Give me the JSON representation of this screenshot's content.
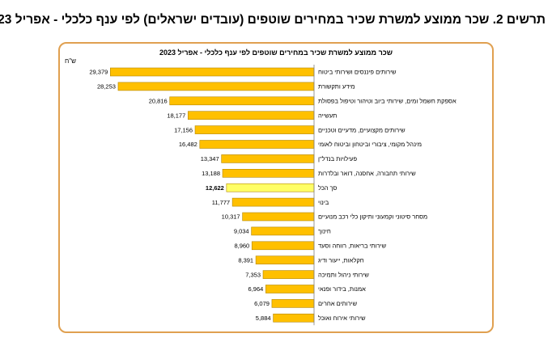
{
  "page": {
    "title": "תרשים 2.  שכר ממוצע למשרת שכיר במחירים שוטפים (עובדים ישראלים) לפי ענף כלכלי - אפריל 2023"
  },
  "chart_data": {
    "type": "bar",
    "orientation": "horizontal",
    "title": "שכר ממוצע למשרת שכיר במחירים שוטפים לפי ענף כלכלי - אפריל  2023",
    "unit": "ש\"ח",
    "xlim": [
      0,
      30000
    ],
    "grid": false,
    "legend": "none",
    "bar_color": "#FFC000",
    "highlight_color": "#FFFF66",
    "bar_edge_color": "#B38600",
    "highlight_category": "סך הכל",
    "categories": [
      "שירותים פיננסים ושירותי ביטוח",
      "מידע ותקשורת",
      "אספקת חשמל ומים, שירותי ביוב וטיהור וטיפול בפסולת",
      "תעשייה",
      "שירותים מקצועיים, מדעיים וטכניים",
      "מינהל מקומי, ציבורי וביטחון וביטוח לאומי",
      "פעילויות בנדל\"ן",
      "שירותי תחבורה, אחסנה, דואר ובלדרות",
      "סך הכל",
      "בינוי",
      "מסחר סיטוני וקמעוני ותיקון כלי רכב מנועיים",
      "חינוך",
      "שירותי בריאות, רווחה וסעד",
      "חקלאות, ייעור ודיג",
      "שירותי ניהול ותמיכה",
      "אמנות, בידור ופנאי",
      "שירותים אחרים",
      "שירותי אירוח ואוכל"
    ],
    "values": [
      29379,
      28253,
      20816,
      18177,
      17156,
      16482,
      13347,
      13188,
      12622,
      11777,
      10317,
      9034,
      8960,
      8391,
      7353,
      6964,
      6079,
      5884
    ],
    "value_labels": [
      "29,379",
      "28,253",
      "20,816",
      "18,177",
      "17,156",
      "16,482",
      "13,347",
      "13,188",
      "12,622",
      "11,777",
      "10,317",
      "9,034",
      "8,960",
      "8,391",
      "7,353",
      "6,964",
      "6,079",
      "5,884"
    ]
  }
}
